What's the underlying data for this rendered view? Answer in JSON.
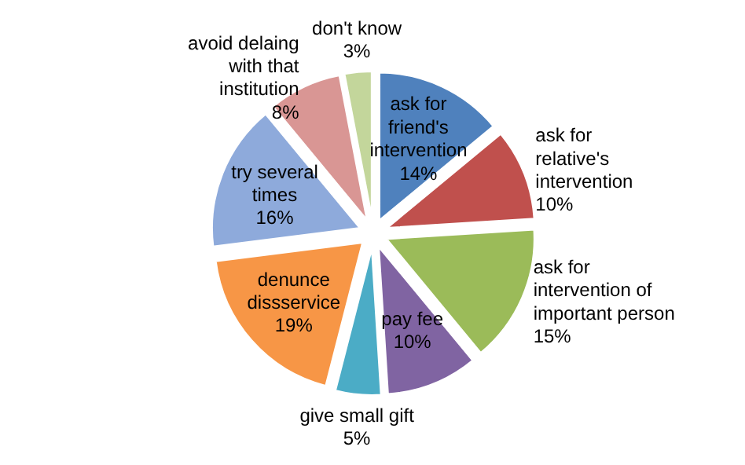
{
  "chart_data": {
    "type": "pie",
    "categories": [
      "ask for friend's intervention",
      "ask for relative's intervention",
      "ask for intervention of important person",
      "pay fee",
      "give small gift",
      "denunce dissservice",
      "try several times",
      "avoid delaing with that institution",
      "don't know"
    ],
    "values": [
      14,
      10,
      15,
      10,
      5,
      19,
      16,
      8,
      3
    ],
    "value_labels": [
      "14%",
      "10%",
      "15%",
      "10%",
      "5%",
      "19%",
      "16%",
      "8%",
      "3%"
    ],
    "colors": [
      "#4f81bd",
      "#c0504d",
      "#9bbb59",
      "#8064a2",
      "#4bacc6",
      "#f79646",
      "#8eaadb",
      "#d99694",
      "#c3d69b"
    ],
    "legend": false
  }
}
